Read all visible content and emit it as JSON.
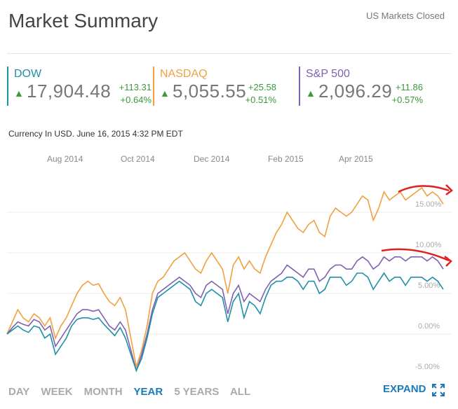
{
  "header": {
    "title": "Market Summary",
    "status": "US Markets Closed"
  },
  "indices": [
    {
      "name": "DOW",
      "value": "17,904.48",
      "change": "+113.31",
      "percent": "+0.64%",
      "color": "#1e90a8"
    },
    {
      "name": "NASDAQ",
      "value": "5,055.55",
      "change": "+25.58",
      "percent": "+0.51%",
      "color": "#f0a040"
    },
    {
      "name": "S&P 500",
      "value": "2,096.29",
      "change": "+11.86",
      "percent": "+0.57%",
      "color": "#8060b0"
    }
  ],
  "meta": "Currency In USD.  June 16, 2015 4:32 PM EDT",
  "chart_data": {
    "type": "line",
    "title": "",
    "x_labels": [
      "Aug 2014",
      "Oct 2014",
      "Dec 2014",
      "Feb 2015",
      "Apr 2015"
    ],
    "y_labels": [
      "15.00%",
      "10.00%",
      "5.00%",
      "0.00%",
      "-5.00%"
    ],
    "ylim": [
      -5,
      20
    ],
    "series": [
      {
        "name": "NASDAQ",
        "color": "#f0a040",
        "values": [
          0,
          1.5,
          3,
          2,
          1.5,
          2.5,
          2,
          1,
          2,
          -0.5,
          1,
          2,
          3.5,
          5,
          6,
          6.5,
          6,
          6.2,
          5,
          4,
          3.5,
          4.5,
          3,
          -0.5,
          -4,
          -2,
          1,
          5,
          6.5,
          7,
          8,
          9,
          9.5,
          10,
          9,
          8,
          7.5,
          9,
          10,
          9,
          8,
          5,
          8.5,
          9.5,
          8,
          9,
          8,
          7.5,
          9.5,
          11,
          12.5,
          13.5,
          15,
          14,
          13,
          12.5,
          13.5,
          14,
          12.5,
          12,
          14.5,
          15.5,
          15,
          14.5,
          15,
          16,
          17,
          16.5,
          14,
          15.5,
          17.5,
          16.5,
          17,
          17.5,
          16.5,
          17,
          17.5,
          18,
          17,
          17.5,
          17,
          16
        ]
      },
      {
        "name": "S&P 500",
        "color": "#8060b0",
        "values": [
          0,
          0.8,
          1.5,
          1.2,
          1,
          1.8,
          1.5,
          0.5,
          1,
          -1.5,
          -0.5,
          0.5,
          1.5,
          2.5,
          3,
          3,
          2.8,
          3,
          2,
          1,
          0.5,
          1.5,
          0.5,
          -2,
          -4.5,
          -2.5,
          0,
          3,
          5,
          5.5,
          6,
          6.5,
          7,
          6.5,
          6,
          5,
          4.5,
          6,
          6.5,
          6,
          5.5,
          2.5,
          5,
          6,
          4,
          5,
          4.5,
          4,
          5.5,
          6.5,
          7,
          7.5,
          8.5,
          8,
          7.5,
          7,
          8,
          8,
          6.5,
          7,
          8,
          8.5,
          8.5,
          8,
          8,
          9,
          9.5,
          9,
          8,
          8.5,
          9.5,
          9,
          9.5,
          9.5,
          9,
          9.5,
          9.5,
          9.5,
          9,
          9.5,
          9,
          8
        ]
      },
      {
        "name": "DOW",
        "color": "#1e90a8",
        "values": [
          0,
          0.5,
          1,
          0.5,
          0.2,
          1,
          0.8,
          -0.5,
          0,
          -2.5,
          -1.5,
          -0.5,
          1,
          1.8,
          2,
          2,
          1.8,
          2,
          1.2,
          0.5,
          -0.2,
          0.8,
          -0.5,
          -2.5,
          -4.5,
          -3,
          -0.5,
          2.5,
          4.5,
          5,
          5.5,
          6,
          6.5,
          6,
          5.5,
          4,
          3.5,
          5,
          5.5,
          5,
          4.5,
          1.5,
          4,
          5,
          2,
          4,
          3.5,
          2.5,
          4.5,
          6,
          6.5,
          6.5,
          7,
          7,
          6.5,
          5.5,
          6.5,
          6.5,
          5,
          5.5,
          7,
          7,
          7,
          6,
          6.5,
          7.5,
          7.5,
          7,
          5.5,
          6.5,
          7.5,
          6.5,
          7,
          7,
          6,
          7,
          7,
          7,
          6.5,
          7,
          6.5,
          5.5
        ]
      }
    ]
  },
  "ranges": [
    "DAY",
    "WEEK",
    "MONTH",
    "YEAR",
    "5 YEARS",
    "ALL"
  ],
  "active_range": "YEAR",
  "expand_label": "EXPAND"
}
